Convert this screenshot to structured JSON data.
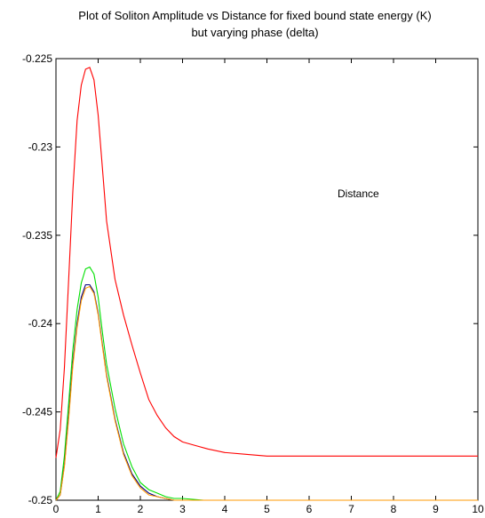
{
  "chart_data": {
    "type": "line",
    "title": "Plot of Soliton Amplitude vs Distance for fixed bound state energy (K)",
    "subtitle": "but varying phase (delta)",
    "xlabel": "",
    "ylabel": "",
    "annotation": "Distance",
    "xlim": [
      0,
      10
    ],
    "ylim": [
      -0.25,
      -0.225
    ],
    "x_ticks": [
      0,
      1,
      2,
      3,
      4,
      5,
      6,
      7,
      8,
      9,
      10
    ],
    "y_ticks": [
      -0.225,
      -0.23,
      -0.235,
      -0.24,
      -0.245,
      -0.25
    ],
    "y_tick_labels": [
      "-0.225",
      "-0.23",
      "-0.235",
      "-0.24",
      "-0.245",
      "-0.25"
    ],
    "grid": false,
    "legend": "none",
    "series": [
      {
        "color": "#ff0000",
        "x": [
          0,
          0.1,
          0.2,
          0.3,
          0.4,
          0.5,
          0.6,
          0.7,
          0.8,
          0.9,
          1.0,
          1.1,
          1.2,
          1.4,
          1.6,
          1.8,
          2.0,
          2.2,
          2.4,
          2.6,
          2.8,
          3.0,
          3.3,
          3.6,
          4.0,
          4.5,
          5,
          6,
          7,
          8,
          9,
          10
        ],
        "y": [
          -0.2476,
          -0.246,
          -0.2425,
          -0.2375,
          -0.2325,
          -0.2285,
          -0.2265,
          -0.2256,
          -0.2255,
          -0.2262,
          -0.2282,
          -0.2312,
          -0.2342,
          -0.2375,
          -0.2395,
          -0.2412,
          -0.2428,
          -0.2443,
          -0.2452,
          -0.2459,
          -0.2464,
          -0.2467,
          -0.2469,
          -0.2471,
          -0.2473,
          -0.2474,
          -0.2475,
          -0.2475,
          -0.2475,
          -0.2475,
          -0.2475,
          -0.2475
        ]
      },
      {
        "color": "#00e000",
        "x": [
          0,
          0.1,
          0.2,
          0.3,
          0.4,
          0.5,
          0.6,
          0.7,
          0.8,
          0.9,
          1.0,
          1.1,
          1.2,
          1.4,
          1.6,
          1.8,
          2.0,
          2.2,
          2.4,
          2.6,
          2.8,
          3.0,
          3.5,
          4,
          5,
          6,
          7,
          8,
          9,
          10
        ],
        "y": [
          -0.25,
          -0.2495,
          -0.2475,
          -0.2445,
          -0.2415,
          -0.2392,
          -0.2377,
          -0.2369,
          -0.2368,
          -0.2372,
          -0.2385,
          -0.2405,
          -0.2423,
          -0.2448,
          -0.2468,
          -0.2481,
          -0.249,
          -0.2494,
          -0.2496,
          -0.2498,
          -0.2499,
          -0.2499,
          -0.25,
          -0.25,
          -0.25,
          -0.25,
          -0.25,
          -0.25,
          -0.25,
          -0.25
        ]
      },
      {
        "color": "#000080",
        "x": [
          0,
          0.1,
          0.2,
          0.3,
          0.4,
          0.5,
          0.6,
          0.7,
          0.8,
          0.9,
          1.0,
          1.1,
          1.2,
          1.4,
          1.6,
          1.8,
          2.0,
          2.2,
          2.4,
          2.6,
          2.8,
          3.0,
          3.5,
          4,
          5,
          6,
          7,
          8,
          9,
          10
        ],
        "y": [
          -0.25,
          -0.2497,
          -0.248,
          -0.2452,
          -0.2422,
          -0.24,
          -0.2385,
          -0.2378,
          -0.2378,
          -0.2382,
          -0.2394,
          -0.2412,
          -0.2429,
          -0.2454,
          -0.2473,
          -0.2485,
          -0.2492,
          -0.2496,
          -0.2498,
          -0.2499,
          -0.25,
          -0.25,
          -0.25,
          -0.25,
          -0.25,
          -0.25,
          -0.25,
          -0.25,
          -0.25,
          -0.25
        ]
      },
      {
        "color": "#ff9900",
        "x": [
          0,
          0.1,
          0.2,
          0.3,
          0.4,
          0.5,
          0.6,
          0.7,
          0.8,
          0.9,
          1.0,
          1.1,
          1.2,
          1.4,
          1.6,
          1.8,
          2.0,
          2.2,
          2.4,
          2.6,
          2.8,
          3.0,
          3.5,
          4,
          5,
          6,
          7,
          8,
          9,
          10
        ],
        "y": [
          -0.25,
          -0.2497,
          -0.2481,
          -0.2454,
          -0.2424,
          -0.2402,
          -0.2387,
          -0.238,
          -0.2379,
          -0.2383,
          -0.2395,
          -0.2413,
          -0.243,
          -0.2455,
          -0.2474,
          -0.2486,
          -0.2493,
          -0.2497,
          -0.2498,
          -0.2499,
          -0.25,
          -0.25,
          -0.25,
          -0.25,
          -0.25,
          -0.25,
          -0.25,
          -0.25,
          -0.25,
          -0.25
        ]
      }
    ]
  }
}
